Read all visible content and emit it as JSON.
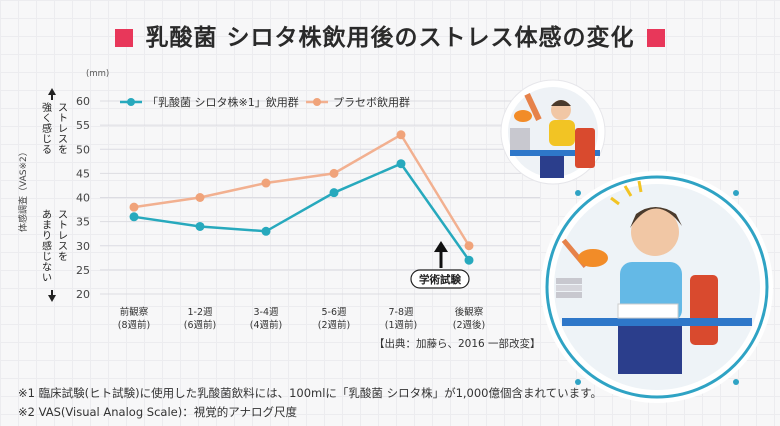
{
  "title": "乳酸菌 シロタ株飲用後のストレス体感の変化",
  "colors": {
    "accent": "#e8375a",
    "teal": "#27a9bd",
    "peach": "#f2b090",
    "peach_marker": "#f0a37a"
  },
  "y_side_labels": {
    "unit": "(mm)",
    "vas_label": "体感調査（VAS※2）",
    "strong": "ストレスを強く感じる",
    "weak": "ストレスをあまり感じない"
  },
  "annotation": "学術試験",
  "source": "【出典：加藤ら、2016 一部改変】",
  "footnotes": [
    "※1 臨床試験(ヒト試験)に使用した乳酸菌飲料には、100mlに「乳酸菌 シロタ株」が1,000億個含まれています。",
    "※2 VAS(Visual Analog Scale)：視覚的アナログ尺度"
  ],
  "chart_data": {
    "type": "line",
    "categories": [
      "前観察\n(8週前)",
      "1-2週\n(6週前)",
      "3-4週\n(4週前)",
      "5-6週\n(2週前)",
      "7-8週\n(1週前)",
      "後観察\n(2週後)"
    ],
    "yticks": [
      20,
      25,
      30,
      35,
      40,
      45,
      50,
      55,
      60
    ],
    "ylim": [
      20,
      60
    ],
    "legend_position": "top",
    "series": [
      {
        "name": "「乳酸菌 シロタ株※1」飲用群",
        "color": "#27a9bd",
        "values": [
          36,
          34,
          33,
          41,
          47,
          27
        ]
      },
      {
        "name": "プラセボ飲用群",
        "color": "#f2b090",
        "values": [
          38,
          40,
          43,
          45,
          53,
          30
        ]
      }
    ]
  }
}
